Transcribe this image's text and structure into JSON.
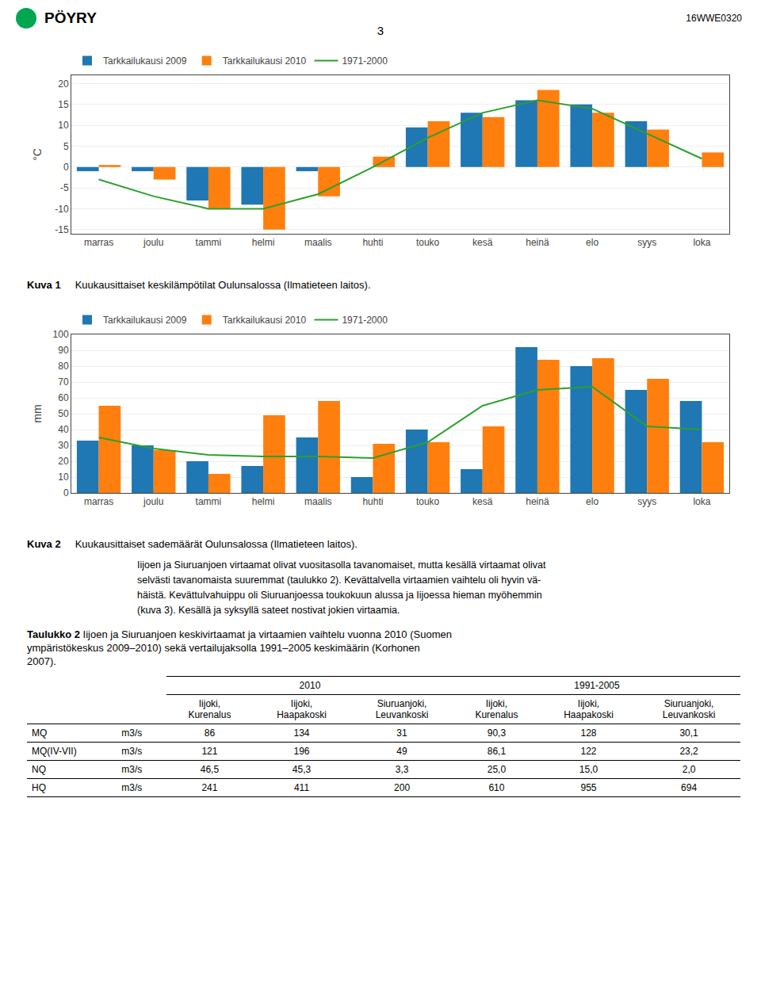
{
  "page": {
    "logo": "PÖYRY",
    "header": "3",
    "ref": "16WWE0320",
    "body": [
      "Iijoen ja Siuruanjoen virtaamat olivat vuositasolla tavanomaiset, mutta kesällä virtaamat olivat",
      "selvästi tavanomaista suuremmat (taulukko 2). Kevättalvella virtaamien vaihtelu oli hyvin vä-",
      "häistä. Kevättulvahuippu oli Siuruanjoessa toukokuun alussa ja Iijoessa hieman myöhemmin",
      "(kuva 3). Kesällä ja syksyllä sateet nostivat jokien virtaamia."
    ]
  },
  "chart_data": [
    {
      "type": "bar",
      "caption": {
        "bold": "Kuva 1",
        "text": "     Kuukausittaiset keskilämpötilat Oulunsalossa (Ilmatieteen laitos)."
      },
      "categories": [
        "marras",
        "joulu",
        "tammi",
        "helmi",
        "maalis",
        "huhti",
        "touko",
        "kesä",
        "heinä",
        "elo",
        "syys",
        "loka"
      ],
      "series": [
        {
          "name": "Tarkkailukausi 2009",
          "values": [
            -1.0,
            -1.0,
            -8.0,
            -9.0,
            -1.0,
            0.0,
            9.5,
            13.0,
            16.0,
            15.0,
            11.0,
            0.0
          ]
        },
        {
          "name": "Tarkkailukausi 2010",
          "values": [
            0.5,
            -3.0,
            -10.0,
            -15.0,
            -7.0,
            2.5,
            11.0,
            12.0,
            18.5,
            13.0,
            9.0,
            3.5
          ]
        },
        {
          "name": "1971-2000",
          "type": "line",
          "values": [
            -3.0,
            -7.0,
            -10.0,
            -10.0,
            -6.5,
            0.0,
            7.0,
            13.0,
            16.0,
            14.0,
            8.0,
            2.0
          ]
        }
      ],
      "ylabel": "°C",
      "ylim": [
        -16,
        22
      ],
      "yticks": [
        -15,
        -10,
        -5,
        0,
        5,
        10,
        15,
        20
      ],
      "grid": true,
      "legend": "upper left"
    },
    {
      "type": "bar",
      "caption": {
        "bold": "Kuva 2",
        "text": "     Kuukausittaiset sademäärät Oulunsalossa (Ilmatieteen laitos)."
      },
      "categories": [
        "marras",
        "joulu",
        "tammi",
        "helmi",
        "maalis",
        "huhti",
        "touko",
        "kesä",
        "heinä",
        "elo",
        "syys",
        "loka"
      ],
      "series": [
        {
          "name": "Tarkkailukausi 2009",
          "values": [
            33.0,
            30.0,
            20.0,
            17.0,
            35.0,
            10.0,
            40.0,
            15.0,
            92.0,
            80.0,
            65.0,
            58.0
          ]
        },
        {
          "name": "Tarkkailukausi 2010",
          "values": [
            55.0,
            27.0,
            12.0,
            49.0,
            58.0,
            31.0,
            32.0,
            42.0,
            84.0,
            85.0,
            72.0,
            32.0
          ]
        },
        {
          "name": "1971-2000",
          "type": "line",
          "values": [
            35.0,
            28.0,
            24.0,
            23.0,
            23.0,
            22.0,
            32.0,
            55.0,
            65.0,
            67.0,
            42.0,
            40.0
          ]
        }
      ],
      "ylabel": "mm",
      "ylim": [
        0,
        100
      ],
      "yticks": [
        0,
        10,
        20,
        30,
        40,
        50,
        60,
        70,
        80,
        90,
        100
      ],
      "grid": true,
      "legend": "upper left"
    },
    {
      "type": "table",
      "caption": {
        "bold": "Taulukko 2",
        "text": " Iijoen ja Siuruanjoen keskivirtaamat ja virtaamien vaihtelu vuonna 2010 (Suomen\nympäristökeskus 2009–2010) sekä vertailujaksolla 1991–2005 keskimäärin (Korhonen\n2007)."
      },
      "column_groups": [
        "2010",
        "1991-2005"
      ],
      "columns": [
        "Iijoki,\nKurenalus",
        "Iijoki,\nHaapakoski",
        "Siuruanjoki,\nLeuvankoski",
        "Iijoki,\nKurenalus",
        "Iijoki,\nHaapakoski",
        "Siuruanjoki,\nLeuvankoski"
      ],
      "rows": [
        {
          "label": "MQ",
          "unit": "m3/s",
          "values": [
            86,
            134,
            31,
            "90,3",
            128,
            "30,1"
          ]
        },
        {
          "label": "MQ(IV-VII)",
          "unit": "m3/s",
          "values": [
            121,
            196,
            49,
            "86,1",
            122,
            "23,2"
          ]
        },
        {
          "label": "NQ",
          "unit": "m3/s",
          "values": [
            "46,5",
            "45,3",
            "3,3",
            "25,0",
            "15,0",
            "2,0"
          ]
        },
        {
          "label": "HQ",
          "unit": "m3/s",
          "values": [
            241,
            411,
            200,
            610,
            955,
            694
          ]
        }
      ]
    }
  ]
}
